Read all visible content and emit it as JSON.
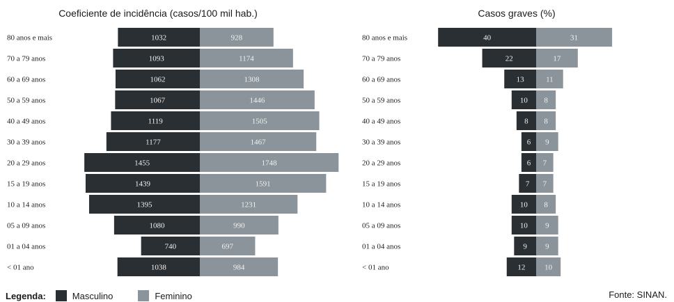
{
  "legend": {
    "label": "Legenda:",
    "male": "Masculino",
    "female": "Feminino",
    "male_color": "#2a2f33",
    "female_color": "#8a949a"
  },
  "source": "Fonte: SINAN.",
  "chart_data": [
    {
      "type": "bar",
      "subtype": "population-pyramid",
      "title": "Coeficiente de incidência (casos/100 mil hab.)",
      "categories": [
        "80 anos e mais",
        "70 a 79 anos",
        "60 a 69 anos",
        "50 a 59 anos",
        "40 a 49 anos",
        "30 a 39 anos",
        "20 a 29 anos",
        "15 a 19 anos",
        "10 a 14 anos",
        "05 a 09 anos",
        "01 a 04 anos",
        "< 01 ano"
      ],
      "series": [
        {
          "name": "Masculino",
          "values": [
            1032,
            1093,
            1062,
            1067,
            1119,
            1177,
            1455,
            1439,
            1395,
            1080,
            740,
            1038
          ]
        },
        {
          "name": "Feminino",
          "values": [
            928,
            1174,
            1308,
            1446,
            1505,
            1467,
            1748,
            1591,
            1231,
            990,
            697,
            984
          ]
        }
      ]
    },
    {
      "type": "bar",
      "subtype": "population-pyramid",
      "title": "Casos graves (%)",
      "categories": [
        "80 anos e mais",
        "70 a 79 anos",
        "60 a 69 anos",
        "50 a 59 anos",
        "40 a 49 anos",
        "30 a 39 anos",
        "20 a 29 anos",
        "15 a 19 anos",
        "10 a 14 anos",
        "05 a 09 anos",
        "01 a 04 anos",
        "< 01 ano"
      ],
      "series": [
        {
          "name": "Masculino",
          "values": [
            40,
            22,
            13,
            10,
            8,
            6,
            6,
            7,
            10,
            10,
            9,
            12
          ]
        },
        {
          "name": "Feminino",
          "values": [
            31,
            17,
            11,
            8,
            8,
            9,
            7,
            7,
            8,
            9,
            9,
            10
          ]
        }
      ]
    }
  ]
}
